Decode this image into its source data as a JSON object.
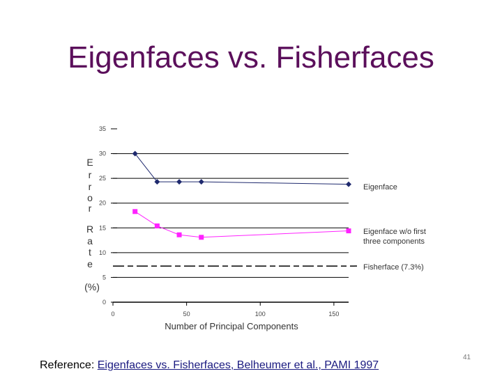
{
  "slide": {
    "title": "Eigenfaces vs. Fisherfaces",
    "reference_prefix": "Reference: ",
    "reference_link": "Eigenfaces vs. Fisherfaces, Belheumer et al., PAMI 1997",
    "page_number": "41"
  },
  "chart_data": {
    "type": "line",
    "xlabel": "Number of Principal Components",
    "ylabel_chars": [
      "E",
      "r",
      "r",
      "o",
      "r",
      "",
      "R",
      "a",
      "t",
      "e"
    ],
    "ylabel_unit": "(%)",
    "xlim": [
      0,
      160
    ],
    "ylim": [
      0,
      35
    ],
    "xticks": [
      0,
      50,
      100,
      150
    ],
    "yticks": [
      0,
      5,
      10,
      15,
      20,
      25,
      30,
      35
    ],
    "grid": "horizontal",
    "legend_placement": "right",
    "series": [
      {
        "name": "Eigenface",
        "color": "#1f2a6e",
        "marker": "diamond",
        "points": [
          [
            15,
            30.0
          ],
          [
            30,
            24.3
          ],
          [
            45,
            24.3
          ],
          [
            60,
            24.3
          ],
          [
            160,
            23.8
          ]
        ]
      },
      {
        "name": "Eigenface w/o first three components",
        "name_lines": [
          "Eigenface w/o first",
          "three components"
        ],
        "color": "#ff22ff",
        "marker": "square",
        "points": [
          [
            15,
            18.3
          ],
          [
            30,
            15.4
          ],
          [
            45,
            13.6
          ],
          [
            60,
            13.1
          ],
          [
            160,
            14.4
          ]
        ]
      },
      {
        "name": "Fisherface (7.3%)",
        "color": "#000000",
        "style": "dashed",
        "constant": 7.3
      }
    ]
  }
}
